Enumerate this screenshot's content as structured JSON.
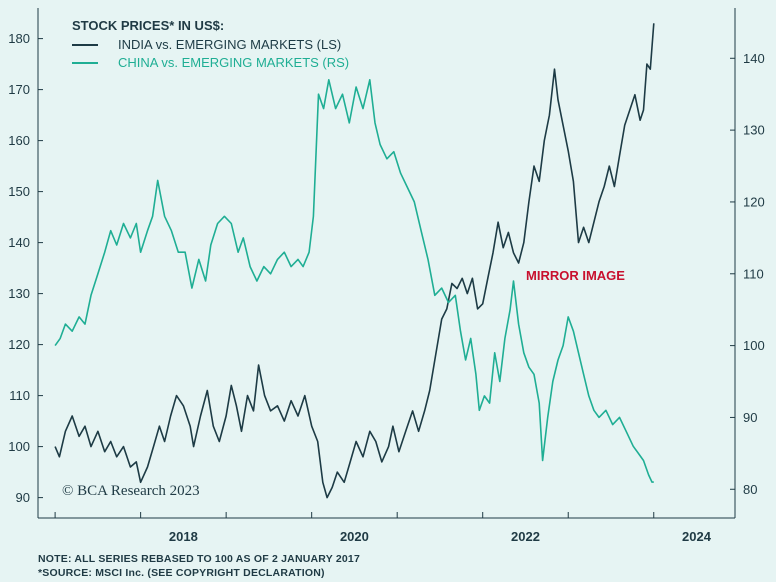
{
  "chart_data": {
    "type": "line",
    "title": "STOCK PRICES* IN US$:",
    "annotation": "MIRROR IMAGE",
    "watermark": "© BCA Research 2023",
    "x_ticks": [
      "2018",
      "2020",
      "2022",
      "2024"
    ],
    "y_left": {
      "ticks": [
        90,
        100,
        110,
        120,
        130,
        140,
        150,
        160,
        170,
        180
      ],
      "range": [
        86,
        186
      ]
    },
    "y_right": {
      "ticks": [
        80,
        90,
        100,
        110,
        120,
        130,
        140
      ],
      "range": [
        76,
        147
      ]
    },
    "x_range": [
      2016.8,
      2024.95
    ],
    "colors": {
      "india": "#1d3b45",
      "china": "#1fae94",
      "annotation": "#c8102e",
      "axis": "#1f3a44"
    },
    "series": [
      {
        "name": "INDIA vs. EMERGING MARKETS (LS)",
        "axis": "left",
        "points": [
          [
            2017.0,
            100
          ],
          [
            2017.05,
            98
          ],
          [
            2017.12,
            103
          ],
          [
            2017.2,
            106
          ],
          [
            2017.28,
            102
          ],
          [
            2017.35,
            104
          ],
          [
            2017.42,
            100
          ],
          [
            2017.5,
            103
          ],
          [
            2017.58,
            99
          ],
          [
            2017.65,
            101
          ],
          [
            2017.72,
            98
          ],
          [
            2017.8,
            100
          ],
          [
            2017.88,
            96
          ],
          [
            2017.95,
            97
          ],
          [
            2018.0,
            93
          ],
          [
            2018.08,
            96
          ],
          [
            2018.15,
            100
          ],
          [
            2018.22,
            104
          ],
          [
            2018.28,
            101
          ],
          [
            2018.35,
            106
          ],
          [
            2018.42,
            110
          ],
          [
            2018.5,
            108
          ],
          [
            2018.58,
            104
          ],
          [
            2018.62,
            100
          ],
          [
            2018.7,
            106
          ],
          [
            2018.78,
            111
          ],
          [
            2018.85,
            104
          ],
          [
            2018.92,
            101
          ],
          [
            2019.0,
            106
          ],
          [
            2019.06,
            112
          ],
          [
            2019.12,
            108
          ],
          [
            2019.18,
            103
          ],
          [
            2019.25,
            110
          ],
          [
            2019.32,
            107
          ],
          [
            2019.38,
            116
          ],
          [
            2019.45,
            110
          ],
          [
            2019.52,
            107
          ],
          [
            2019.6,
            108
          ],
          [
            2019.68,
            105
          ],
          [
            2019.76,
            109
          ],
          [
            2019.84,
            106
          ],
          [
            2019.92,
            110
          ],
          [
            2020.0,
            104
          ],
          [
            2020.07,
            101
          ],
          [
            2020.13,
            93
          ],
          [
            2020.18,
            90
          ],
          [
            2020.24,
            92
          ],
          [
            2020.3,
            95
          ],
          [
            2020.38,
            93
          ],
          [
            2020.45,
            97
          ],
          [
            2020.52,
            101
          ],
          [
            2020.6,
            98
          ],
          [
            2020.68,
            103
          ],
          [
            2020.75,
            101
          ],
          [
            2020.82,
            97
          ],
          [
            2020.9,
            100
          ],
          [
            2020.95,
            104
          ],
          [
            2021.02,
            99
          ],
          [
            2021.1,
            103
          ],
          [
            2021.18,
            107
          ],
          [
            2021.25,
            103
          ],
          [
            2021.32,
            107
          ],
          [
            2021.38,
            111
          ],
          [
            2021.45,
            118
          ],
          [
            2021.52,
            125
          ],
          [
            2021.58,
            127
          ],
          [
            2021.64,
            132
          ],
          [
            2021.7,
            131
          ],
          [
            2021.76,
            133
          ],
          [
            2021.82,
            130
          ],
          [
            2021.88,
            133
          ],
          [
            2021.94,
            127
          ],
          [
            2022.0,
            128
          ],
          [
            2022.06,
            133
          ],
          [
            2022.12,
            138
          ],
          [
            2022.18,
            144
          ],
          [
            2022.24,
            139
          ],
          [
            2022.3,
            142
          ],
          [
            2022.36,
            138
          ],
          [
            2022.42,
            136
          ],
          [
            2022.48,
            140
          ],
          [
            2022.54,
            148
          ],
          [
            2022.6,
            155
          ],
          [
            2022.66,
            152
          ],
          [
            2022.72,
            160
          ],
          [
            2022.78,
            165
          ],
          [
            2022.84,
            174
          ],
          [
            2022.88,
            168
          ],
          [
            2022.94,
            163
          ],
          [
            2023.0,
            158
          ],
          [
            2023.06,
            152
          ],
          [
            2023.12,
            140
          ],
          [
            2023.18,
            143
          ],
          [
            2023.24,
            140
          ],
          [
            2023.3,
            144
          ],
          [
            2023.36,
            148
          ],
          [
            2023.42,
            151
          ],
          [
            2023.48,
            155
          ],
          [
            2023.54,
            151
          ],
          [
            2023.6,
            157
          ],
          [
            2023.66,
            163
          ],
          [
            2023.72,
            166
          ],
          [
            2023.78,
            169
          ],
          [
            2023.84,
            164
          ],
          [
            2023.88,
            166
          ],
          [
            2023.92,
            175
          ],
          [
            2023.96,
            174
          ],
          [
            2024.0,
            183
          ]
        ]
      },
      {
        "name": "CHINA vs. EMERGING MARKETS (RS)",
        "axis": "right",
        "points": [
          [
            2017.0,
            100
          ],
          [
            2017.06,
            101
          ],
          [
            2017.12,
            103
          ],
          [
            2017.2,
            102
          ],
          [
            2017.28,
            104
          ],
          [
            2017.35,
            103
          ],
          [
            2017.42,
            107
          ],
          [
            2017.5,
            110
          ],
          [
            2017.58,
            113
          ],
          [
            2017.65,
            116
          ],
          [
            2017.72,
            114
          ],
          [
            2017.8,
            117
          ],
          [
            2017.88,
            115
          ],
          [
            2017.95,
            117
          ],
          [
            2018.0,
            113
          ],
          [
            2018.08,
            116
          ],
          [
            2018.14,
            118
          ],
          [
            2018.2,
            123
          ],
          [
            2018.28,
            118
          ],
          [
            2018.36,
            116
          ],
          [
            2018.44,
            113
          ],
          [
            2018.52,
            113
          ],
          [
            2018.6,
            108
          ],
          [
            2018.68,
            112
          ],
          [
            2018.76,
            109
          ],
          [
            2018.82,
            114
          ],
          [
            2018.9,
            117
          ],
          [
            2018.98,
            118
          ],
          [
            2019.06,
            117
          ],
          [
            2019.14,
            113
          ],
          [
            2019.2,
            115
          ],
          [
            2019.28,
            111
          ],
          [
            2019.36,
            109
          ],
          [
            2019.44,
            111
          ],
          [
            2019.52,
            110
          ],
          [
            2019.6,
            112
          ],
          [
            2019.68,
            113
          ],
          [
            2019.76,
            111
          ],
          [
            2019.84,
            112
          ],
          [
            2019.9,
            111
          ],
          [
            2019.97,
            113
          ],
          [
            2020.02,
            118
          ],
          [
            2020.08,
            135
          ],
          [
            2020.14,
            133
          ],
          [
            2020.2,
            137
          ],
          [
            2020.28,
            133
          ],
          [
            2020.36,
            135
          ],
          [
            2020.44,
            131
          ],
          [
            2020.52,
            136
          ],
          [
            2020.6,
            133
          ],
          [
            2020.68,
            137
          ],
          [
            2020.74,
            131
          ],
          [
            2020.8,
            128
          ],
          [
            2020.88,
            126
          ],
          [
            2020.96,
            127
          ],
          [
            2021.04,
            124
          ],
          [
            2021.12,
            122
          ],
          [
            2021.2,
            120
          ],
          [
            2021.28,
            116
          ],
          [
            2021.36,
            112
          ],
          [
            2021.44,
            107
          ],
          [
            2021.52,
            108
          ],
          [
            2021.6,
            106
          ],
          [
            2021.68,
            107
          ],
          [
            2021.74,
            102
          ],
          [
            2021.8,
            98
          ],
          [
            2021.86,
            101
          ],
          [
            2021.92,
            96
          ],
          [
            2021.96,
            91
          ],
          [
            2022.02,
            93
          ],
          [
            2022.08,
            92
          ],
          [
            2022.14,
            99
          ],
          [
            2022.2,
            95
          ],
          [
            2022.26,
            101
          ],
          [
            2022.32,
            105
          ],
          [
            2022.36,
            109
          ],
          [
            2022.42,
            103
          ],
          [
            2022.48,
            99
          ],
          [
            2022.54,
            97
          ],
          [
            2022.6,
            96
          ],
          [
            2022.66,
            92
          ],
          [
            2022.7,
            84
          ],
          [
            2022.76,
            90
          ],
          [
            2022.82,
            95
          ],
          [
            2022.88,
            98
          ],
          [
            2022.94,
            100
          ],
          [
            2023.0,
            104
          ],
          [
            2023.06,
            102
          ],
          [
            2023.12,
            99
          ],
          [
            2023.18,
            96
          ],
          [
            2023.24,
            93
          ],
          [
            2023.3,
            91
          ],
          [
            2023.36,
            90
          ],
          [
            2023.44,
            91
          ],
          [
            2023.52,
            89
          ],
          [
            2023.6,
            90
          ],
          [
            2023.68,
            88
          ],
          [
            2023.76,
            86
          ],
          [
            2023.82,
            85
          ],
          [
            2023.88,
            84
          ],
          [
            2023.94,
            82
          ],
          [
            2023.98,
            81
          ],
          [
            2024.0,
            81
          ]
        ]
      }
    ]
  },
  "footnotes": {
    "note": "NOTE: ALL SERIES REBASED TO 100 AS OF 2 JANUARY 2017",
    "source": "*SOURCE: MSCI Inc. (SEE COPYRIGHT DECLARATION)"
  }
}
